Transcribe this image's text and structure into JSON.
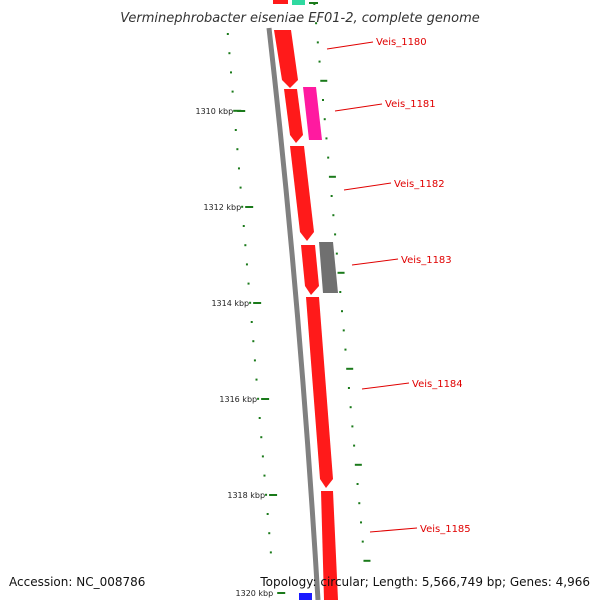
{
  "title": "Verminephrobacter eiseniae EF01-2, complete genome",
  "accession": "Accession: NC_008786",
  "topology": "Topology: circular; Length: 5,566,749 bp; Genes: 4,966",
  "colors": {
    "backbone": "#808080",
    "tick": "#1a7a1a",
    "gene_red": "#ff1a1a",
    "gene_magenta": "#ff1aa0",
    "gene_gray": "#707070",
    "gene_green": "#2fd9a0",
    "gene_blue": "#1a1aff",
    "label": "#e00000"
  },
  "scale_labels": [
    "1310 kbp",
    "1312 kbp",
    "1314 kbp",
    "1316 kbp",
    "1318 kbp",
    "1320 kbp"
  ],
  "genes": [
    {
      "name": "Veis_1180",
      "color": "red"
    },
    {
      "name": "Veis_1181",
      "color": "magenta"
    },
    {
      "name": "Veis_1182",
      "color": "red"
    },
    {
      "name": "Veis_1183",
      "color": "gray"
    },
    {
      "name": "Veis_1184",
      "color": "red"
    },
    {
      "name": "Veis_1185",
      "color": "red"
    }
  ]
}
